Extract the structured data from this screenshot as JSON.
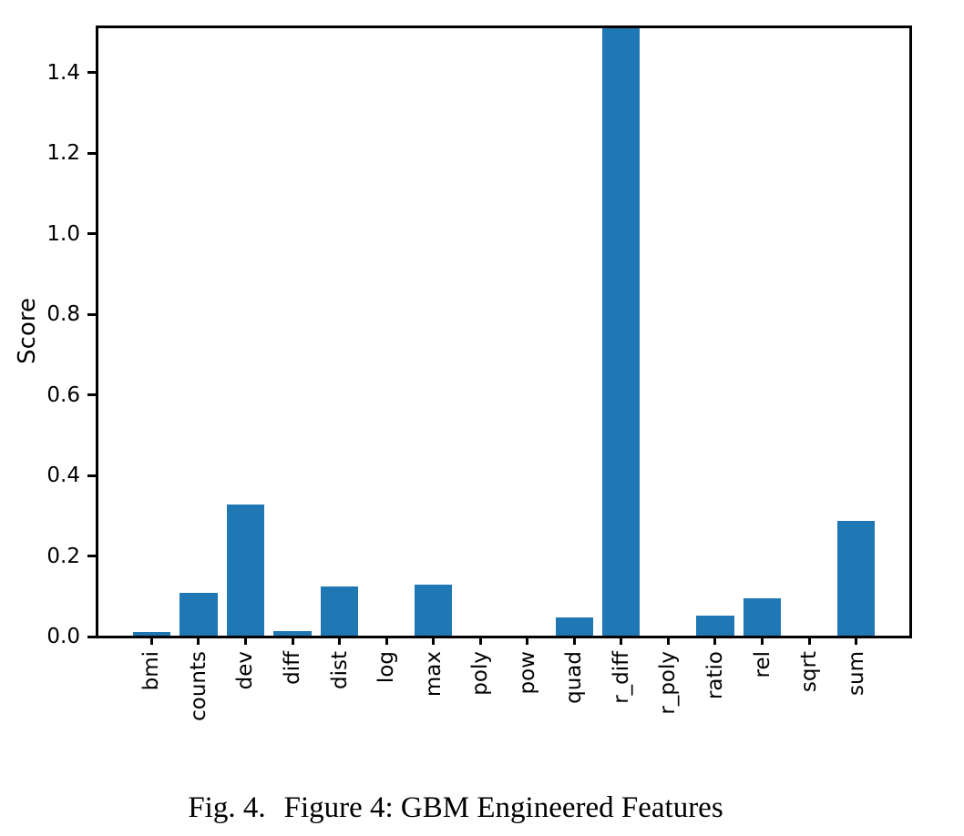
{
  "figure": {
    "caption_label": "Fig. 4.",
    "caption_text": "Figure 4: GBM Engineered Features"
  },
  "chart_data": {
    "type": "bar",
    "title": "",
    "xlabel": "",
    "ylabel": "Score",
    "categories": [
      "bmi",
      "counts",
      "dev",
      "diff",
      "dist",
      "log",
      "max",
      "poly",
      "pow",
      "quad",
      "r_diff",
      "r_poly",
      "ratio",
      "rel",
      "sqrt",
      "sum"
    ],
    "values": [
      0.011,
      0.108,
      0.327,
      0.013,
      0.125,
      0.0,
      0.129,
      0.0,
      0.0,
      0.048,
      1.51,
      0.0,
      0.053,
      0.095,
      0.0,
      0.287
    ],
    "ylim": [
      0,
      1.51
    ],
    "yticks": [
      0.0,
      0.2,
      0.4,
      0.6,
      0.8,
      1.0,
      1.2,
      1.4
    ],
    "ytick_labels": [
      "0.0",
      "0.2",
      "0.4",
      "0.6",
      "0.8",
      "1.0",
      "1.2",
      "1.4"
    ],
    "x_tick_rotation": 90,
    "grid": false,
    "legend": null,
    "bar_color": "#1f77b4",
    "axis_color": "#000000",
    "annotations": [
      "r_diff bar is clipped at the top of the axis (extends beyond ylim max 1.5)"
    ]
  }
}
